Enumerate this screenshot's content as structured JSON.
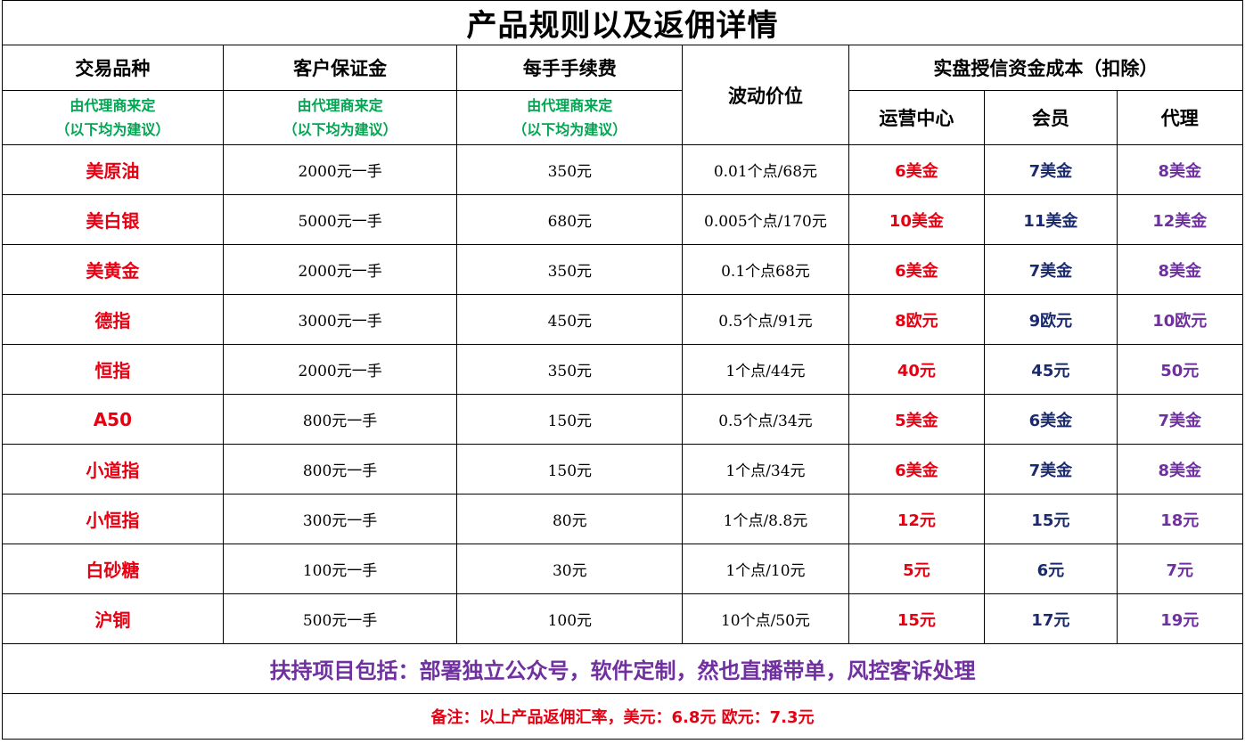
{
  "title": "产品规则以及返佣详情",
  "headers": {
    "product": "交易品种",
    "margin": "客户保证金",
    "fee": "每手手续费",
    "tick": "波动价位",
    "credit": "实盘授信资金成本（扣除）",
    "center": "运营中心",
    "member": "会员",
    "agent": "代理",
    "note_line1": "由代理商来定",
    "note_line2": "（以下均为建议）"
  },
  "rows": [
    {
      "product": "美原油",
      "margin": "2000元一手",
      "fee": "350元",
      "tick": "0.01个点/68元",
      "center": "6美金",
      "member": "7美金",
      "agent": "8美金"
    },
    {
      "product": "美白银",
      "margin": "5000元一手",
      "fee": "680元",
      "tick": "0.005个点/170元",
      "center": "10美金",
      "member": "11美金",
      "agent": "12美金"
    },
    {
      "product": "美黄金",
      "margin": "2000元一手",
      "fee": "350元",
      "tick": "0.1个点68元",
      "center": "6美金",
      "member": "7美金",
      "agent": "8美金"
    },
    {
      "product": "德指",
      "margin": "3000元一手",
      "fee": "450元",
      "tick": "0.5个点/91元",
      "center": "8欧元",
      "member": "9欧元",
      "agent": "10欧元"
    },
    {
      "product": "恒指",
      "margin": "2000元一手",
      "fee": "350元",
      "tick": "1个点/44元",
      "center": "40元",
      "member": "45元",
      "agent": "50元"
    },
    {
      "product": "A50",
      "margin": "800元一手",
      "fee": "150元",
      "tick": "0.5个点/34元",
      "center": "5美金",
      "member": "6美金",
      "agent": "7美金"
    },
    {
      "product": "小道指",
      "margin": "800元一手",
      "fee": "150元",
      "tick": "1个点/34元",
      "center": "6美金",
      "member": "7美金",
      "agent": "8美金"
    },
    {
      "product": "小恒指",
      "margin": "300元一手",
      "fee": "80元",
      "tick": "1个点/8.8元",
      "center": "12元",
      "member": "15元",
      "agent": "18元"
    },
    {
      "product": "白砂糖",
      "margin": "100元一手",
      "fee": "30元",
      "tick": "1个点/10元",
      "center": "5元",
      "member": "6元",
      "agent": "7元"
    },
    {
      "product": "沪铜",
      "margin": "500元一手",
      "fee": "100元",
      "tick": "10个点/50元",
      "center": "15元",
      "member": "17元",
      "agent": "19元"
    }
  ],
  "support": "扶持项目包括：部署独立公众号，软件定制，然也直播带单，风控客诉处理",
  "remark": "备注：以上产品返佣汇率，美元：6.8元     欧元：7.3元",
  "colors": {
    "product": "#e60012",
    "center": "#e60012",
    "member": "#1a2a6c",
    "agent": "#7030a0",
    "note": "#00a651",
    "support": "#7030a0",
    "remark": "#e60012"
  }
}
